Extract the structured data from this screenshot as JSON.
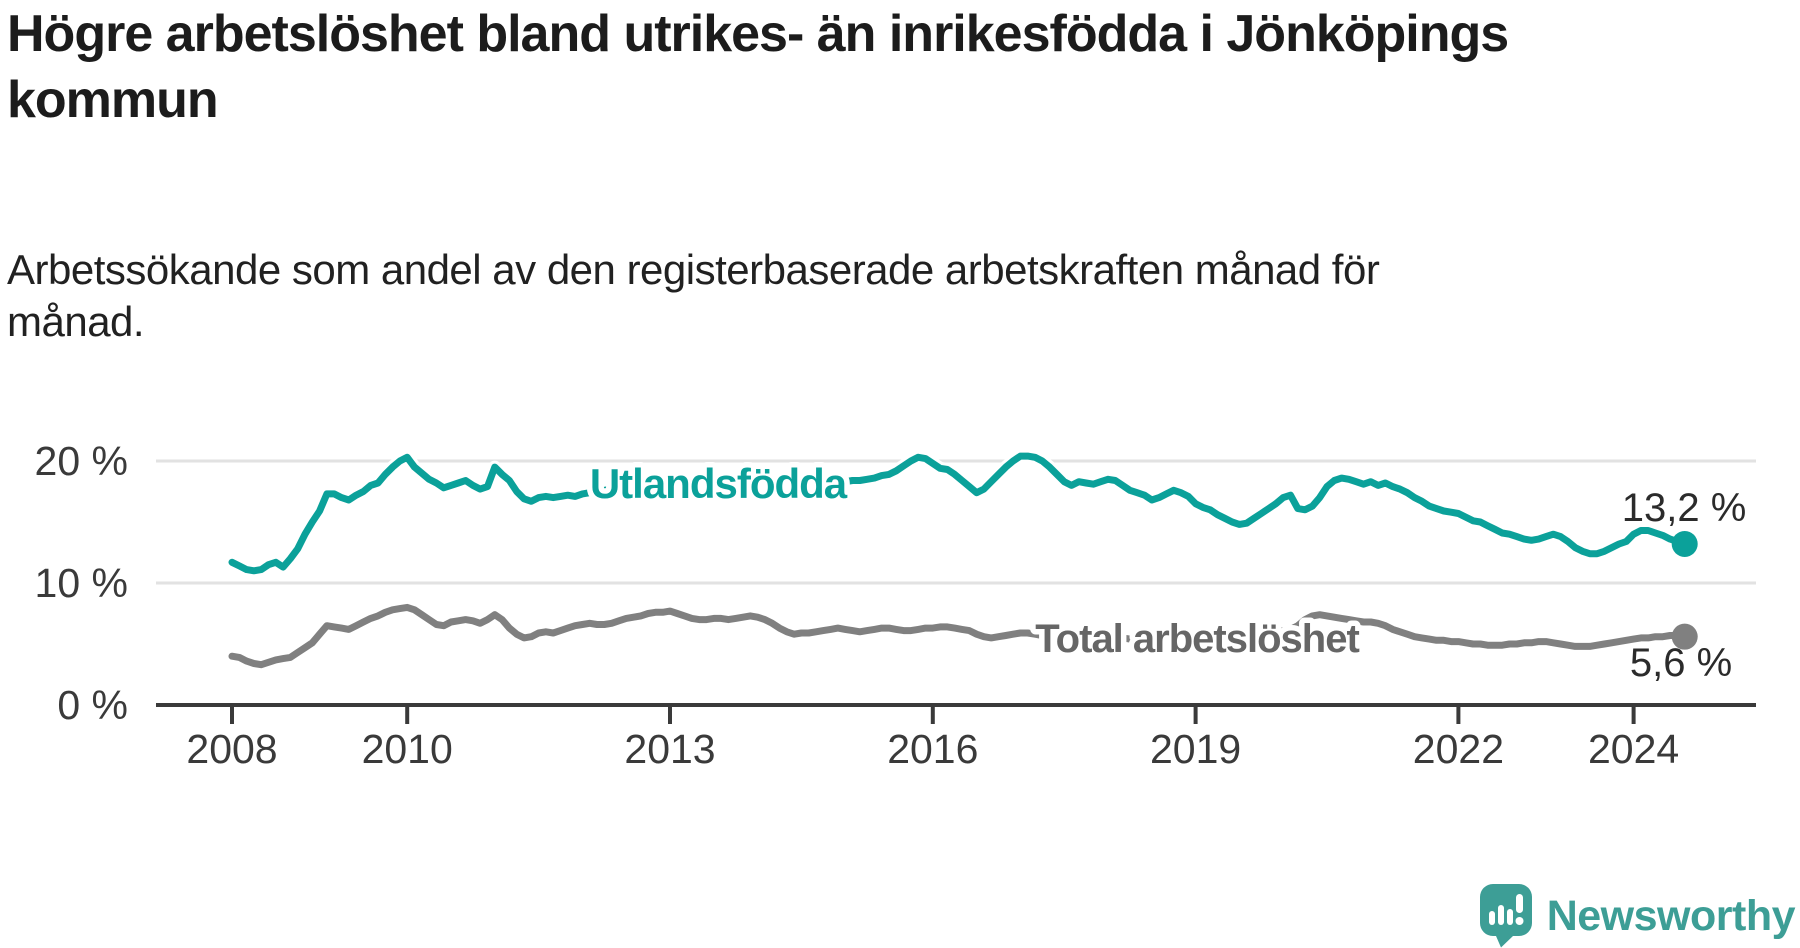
{
  "header": {
    "title": "Högre arbetslöshet bland utrikes- än inrikesfödda i Jönköpings kommun",
    "subtitle_line1": "Arbetssökande som andel av den registerbaserade arbetskraften månad för",
    "subtitle_line2": "månad."
  },
  "footer": {
    "brand": "Newsworthy",
    "logo_icon": "speech-bubble-bar-chart-icon"
  },
  "colors": {
    "accent_teal": "#0ba19a",
    "line_gray": "#808080",
    "gray_label": "#666666",
    "grid": "#e2e2e2",
    "axis": "#3a3a3a",
    "text_dark": "#2b2b2b",
    "brand_teal": "#3d9e96",
    "background": "#ffffff"
  },
  "chart_data": {
    "type": "line",
    "title": "Högre arbetslöshet bland utrikes- än inrikesfödda i Jönköpings kommun",
    "subtitle": "Arbetssökande som andel av den registerbaserade arbetskraften månad för månad.",
    "frequency": "monthly",
    "start_month": "2008-01",
    "end_month": "2024-08",
    "grid": "horizontal-only",
    "legend_position": "inline-labels-on-lines",
    "x_axis": {
      "tick_years": [
        2008,
        2010,
        2013,
        2016,
        2019,
        2022,
        2024
      ],
      "tick_labels": [
        "2008",
        "2010",
        "2013",
        "2016",
        "2019",
        "2022",
        "2024"
      ]
    },
    "y_axis": {
      "unit": "%",
      "tick_values": [
        0,
        10,
        20
      ],
      "tick_labels": [
        "0 %",
        "10 %",
        "20 %"
      ],
      "range": [
        0,
        22
      ]
    },
    "series": [
      {
        "id": "utlandsfodda",
        "name": "Utlandsfödda",
        "color": "#0ba19a",
        "label_color": "#0ba19a",
        "end_value": 13.2,
        "end_label": "13,2 %",
        "values": [
          11.7,
          11.4,
          11.1,
          11.0,
          11.1,
          11.5,
          11.7,
          11.3,
          12.0,
          12.8,
          14.0,
          15.0,
          15.9,
          17.3,
          17.3,
          17.0,
          16.8,
          17.2,
          17.5,
          18.0,
          18.2,
          18.9,
          19.5,
          20.0,
          20.3,
          19.5,
          19.0,
          18.5,
          18.2,
          17.8,
          18.0,
          18.2,
          18.4,
          18.0,
          17.7,
          17.9,
          19.5,
          18.9,
          18.4,
          17.5,
          16.9,
          16.7,
          17.0,
          17.1,
          17.0,
          17.1,
          17.2,
          17.1,
          17.3,
          17.4,
          17.5,
          17.6,
          17.7,
          17.8,
          17.9,
          18.0,
          18.1,
          18.2,
          18.3,
          18.3,
          18.4,
          18.5,
          18.5,
          18.4,
          18.4,
          18.3,
          18.2,
          18.2,
          18.1,
          18.1,
          18.0,
          18.0,
          17.9,
          17.9,
          17.8,
          17.8,
          17.9,
          17.9,
          18.0,
          18.0,
          18.1,
          18.2,
          18.2,
          18.3,
          18.3,
          18.4,
          18.4,
          18.5,
          18.6,
          18.8,
          18.9,
          19.2,
          19.6,
          20.0,
          20.3,
          20.2,
          19.8,
          19.4,
          19.3,
          18.9,
          18.4,
          17.9,
          17.4,
          17.7,
          18.3,
          18.9,
          19.5,
          20.0,
          20.4,
          20.4,
          20.3,
          20.0,
          19.5,
          18.9,
          18.3,
          18.0,
          18.3,
          18.2,
          18.1,
          18.3,
          18.5,
          18.4,
          18.0,
          17.6,
          17.4,
          17.2,
          16.8,
          17.0,
          17.3,
          17.6,
          17.4,
          17.1,
          16.5,
          16.2,
          16.0,
          15.6,
          15.3,
          15.0,
          14.8,
          14.9,
          15.3,
          15.7,
          16.1,
          16.5,
          17.0,
          17.2,
          16.1,
          16.0,
          16.3,
          17.0,
          17.9,
          18.4,
          18.6,
          18.5,
          18.3,
          18.1,
          18.3,
          18.0,
          18.2,
          17.9,
          17.7,
          17.4,
          17.0,
          16.7,
          16.3,
          16.1,
          15.9,
          15.8,
          15.7,
          15.4,
          15.1,
          15.0,
          14.7,
          14.4,
          14.1,
          14.0,
          13.8,
          13.6,
          13.5,
          13.6,
          13.8,
          14.0,
          13.8,
          13.4,
          12.9,
          12.6,
          12.4,
          12.4,
          12.6,
          12.9,
          13.2,
          13.4,
          14.0,
          14.3,
          14.3,
          14.1,
          13.9,
          13.6,
          13.4,
          13.2
        ]
      },
      {
        "id": "total",
        "name": "Total arbetslöshet",
        "color": "#808080",
        "label_color": "#666666",
        "end_value": 5.6,
        "end_label": "5,6 %",
        "values": [
          4.0,
          3.9,
          3.6,
          3.4,
          3.3,
          3.5,
          3.7,
          3.8,
          3.9,
          4.3,
          4.7,
          5.1,
          5.8,
          6.5,
          6.4,
          6.3,
          6.2,
          6.5,
          6.8,
          7.1,
          7.3,
          7.6,
          7.8,
          7.9,
          8.0,
          7.8,
          7.4,
          7.0,
          6.6,
          6.5,
          6.8,
          6.9,
          7.0,
          6.9,
          6.7,
          7.0,
          7.4,
          7.0,
          6.3,
          5.8,
          5.5,
          5.6,
          5.9,
          6.0,
          5.9,
          6.1,
          6.3,
          6.5,
          6.6,
          6.7,
          6.6,
          6.6,
          6.7,
          6.9,
          7.1,
          7.2,
          7.3,
          7.5,
          7.6,
          7.6,
          7.7,
          7.5,
          7.3,
          7.1,
          7.0,
          7.0,
          7.1,
          7.1,
          7.0,
          7.1,
          7.2,
          7.3,
          7.2,
          7.0,
          6.7,
          6.3,
          6.0,
          5.8,
          5.9,
          5.9,
          6.0,
          6.1,
          6.2,
          6.3,
          6.2,
          6.1,
          6.0,
          6.1,
          6.2,
          6.3,
          6.3,
          6.2,
          6.1,
          6.1,
          6.2,
          6.3,
          6.3,
          6.4,
          6.4,
          6.3,
          6.2,
          6.1,
          5.8,
          5.6,
          5.5,
          5.6,
          5.7,
          5.8,
          5.9,
          5.9,
          5.8,
          5.7,
          5.6,
          5.5,
          5.4,
          5.4,
          5.5,
          5.5,
          5.6,
          5.7,
          5.7,
          5.6,
          5.5,
          5.4,
          5.3,
          5.2,
          5.1,
          5.2,
          5.3,
          5.4,
          5.4,
          5.5,
          5.6,
          5.6,
          5.5,
          5.4,
          5.4,
          5.3,
          5.3,
          5.4,
          5.5,
          5.6,
          5.7,
          5.9,
          6.1,
          6.2,
          6.5,
          7.0,
          7.3,
          7.4,
          7.3,
          7.2,
          7.1,
          7.0,
          6.9,
          6.8,
          6.8,
          6.7,
          6.5,
          6.2,
          6.0,
          5.8,
          5.6,
          5.5,
          5.4,
          5.3,
          5.3,
          5.2,
          5.2,
          5.1,
          5.0,
          5.0,
          4.9,
          4.9,
          4.9,
          5.0,
          5.0,
          5.1,
          5.1,
          5.2,
          5.2,
          5.1,
          5.0,
          4.9,
          4.8,
          4.8,
          4.8,
          4.9,
          5.0,
          5.1,
          5.2,
          5.3,
          5.4,
          5.5,
          5.5,
          5.6,
          5.6,
          5.7,
          5.7,
          5.6
        ]
      }
    ]
  }
}
